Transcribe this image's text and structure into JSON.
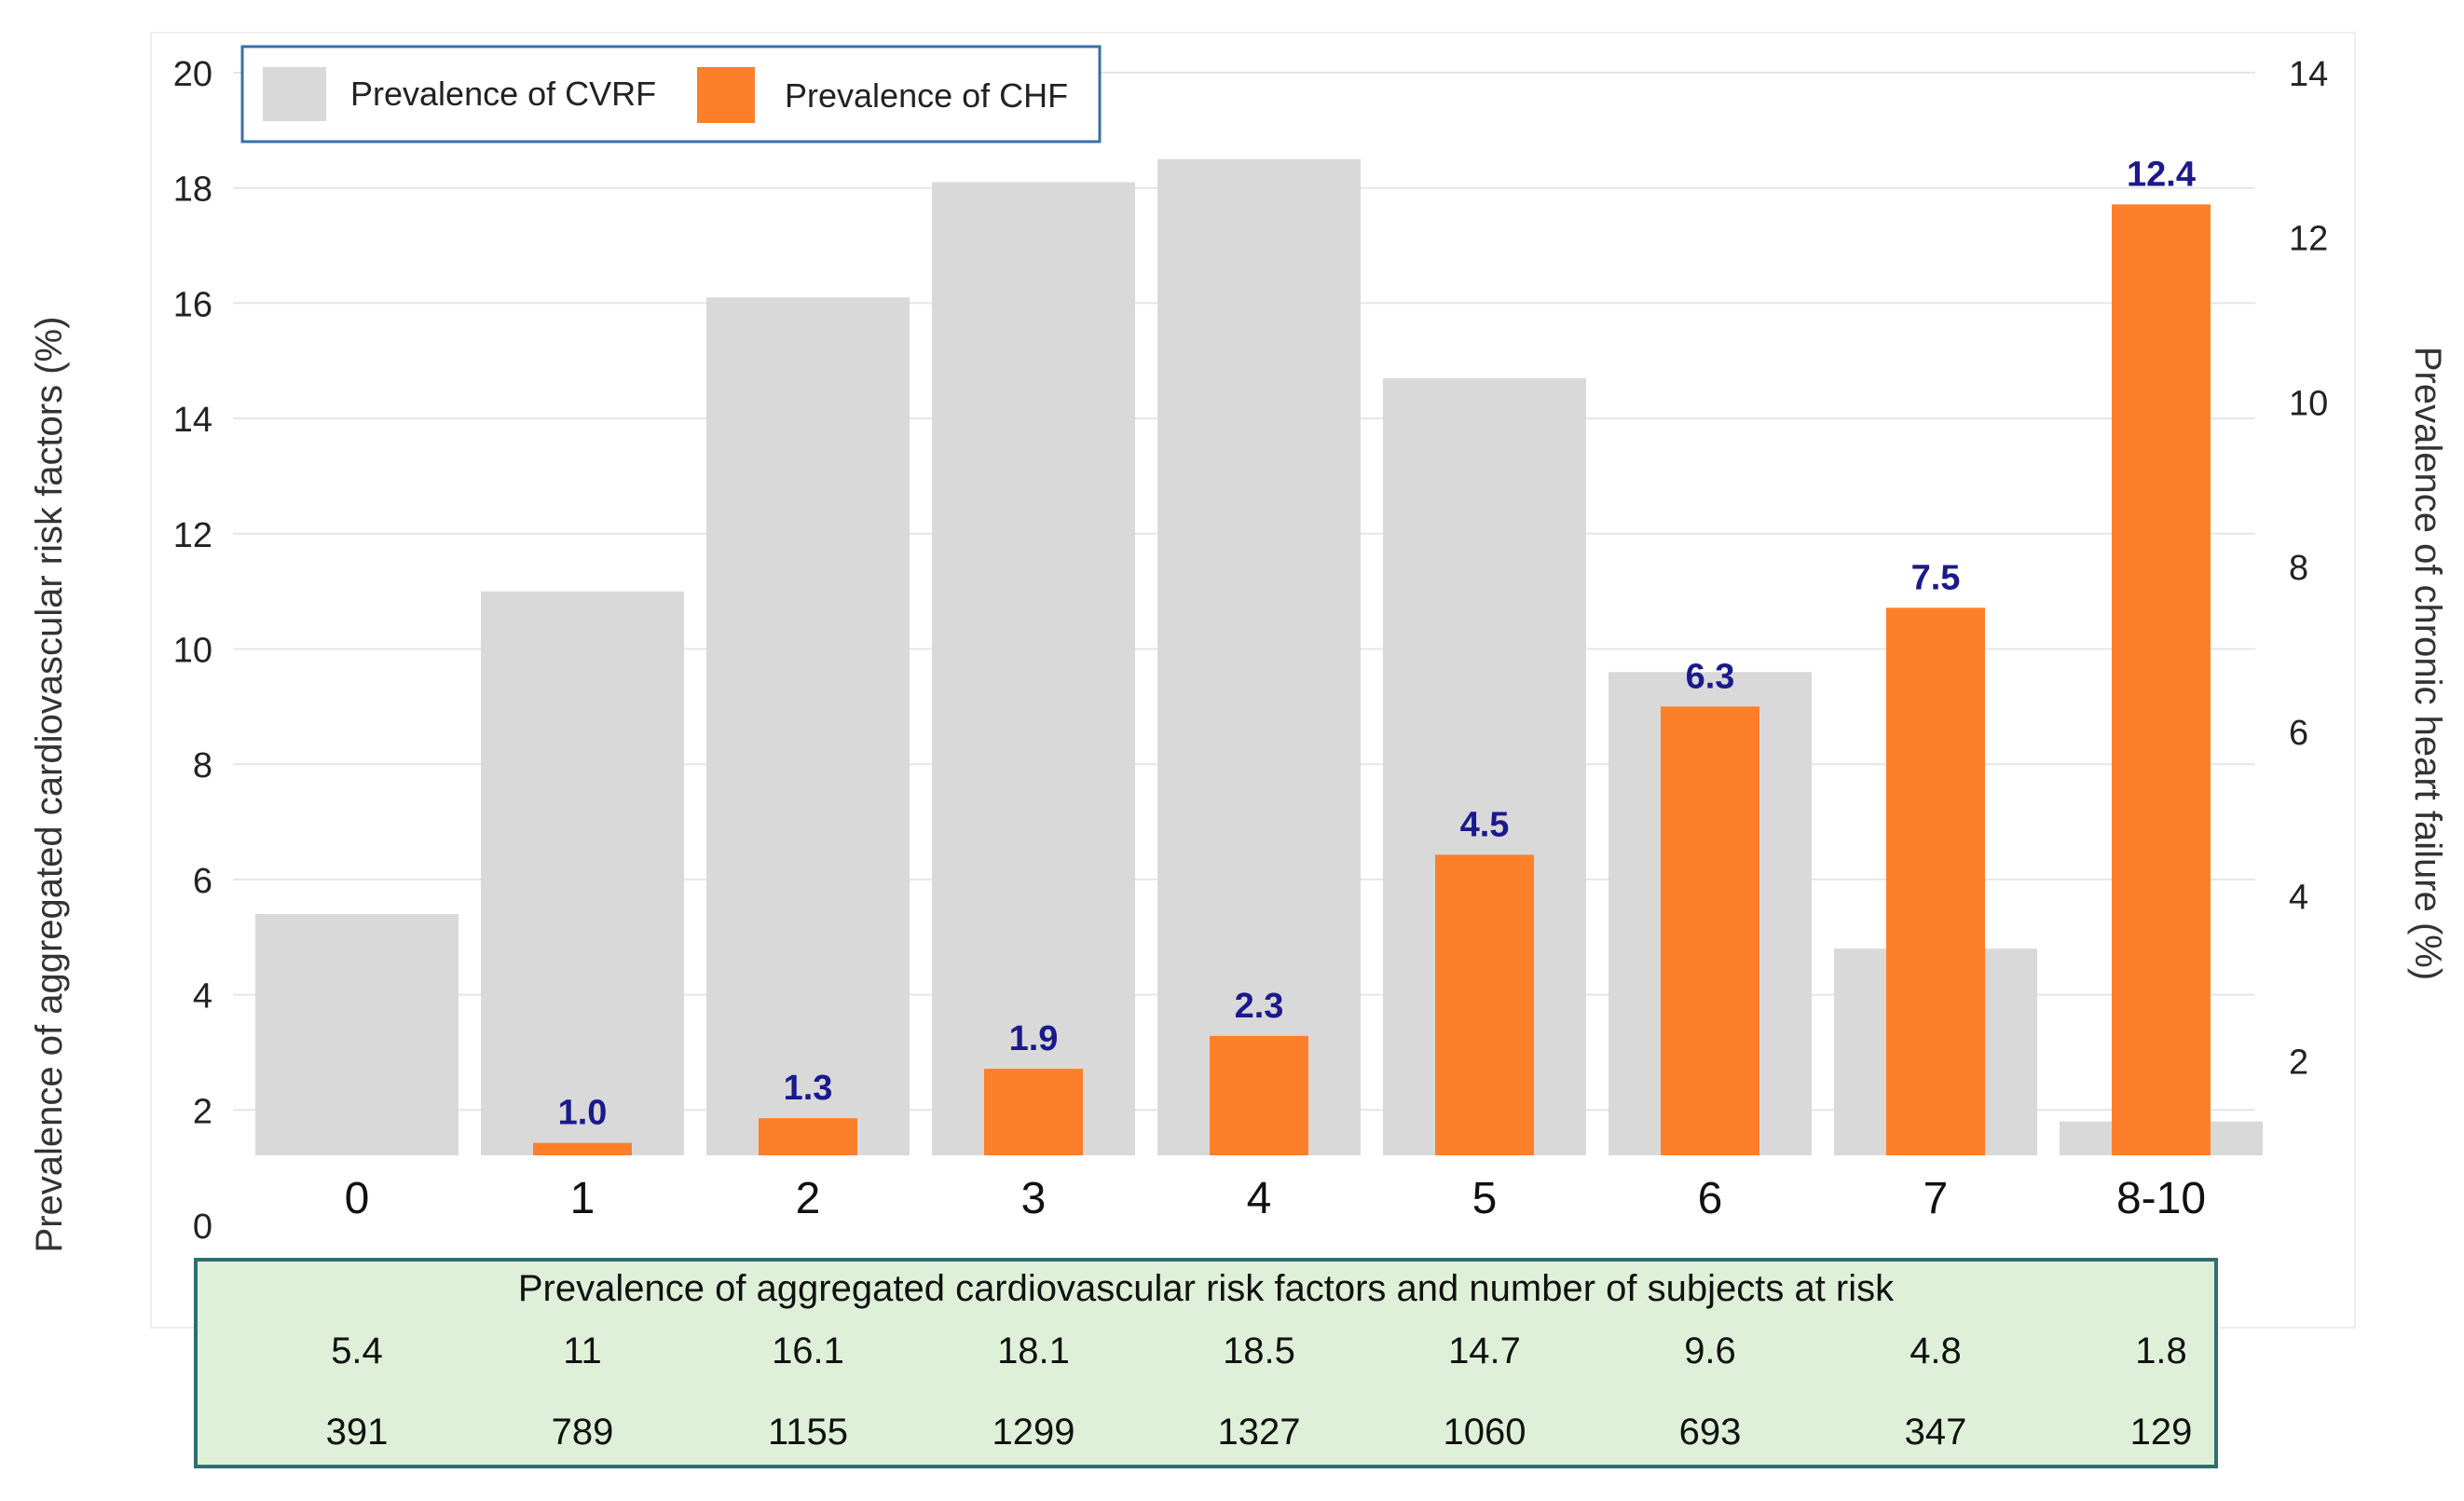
{
  "chart_data": {
    "type": "bar",
    "categories": [
      "0",
      "1",
      "2",
      "3",
      "4",
      "5",
      "6",
      "7",
      "8-10"
    ],
    "series": [
      {
        "name": "Prevalence of CVRF",
        "axis": "left",
        "color": "#d9d9d9",
        "values": [
          5.4,
          11,
          16.1,
          18.1,
          18.5,
          14.7,
          9.6,
          4.8,
          1.8
        ]
      },
      {
        "name": "Prevalence of CHF",
        "axis": "right",
        "color": "#fd7f2a",
        "values": [
          null,
          1.0,
          1.3,
          1.9,
          2.3,
          4.5,
          6.3,
          7.5,
          12.4
        ],
        "data_labels": [
          "",
          "1.0",
          "1.3",
          "1.9",
          "2.3",
          "4.5",
          "6.3",
          "7.5",
          "12.4"
        ]
      }
    ],
    "ylabel_left": "Prevalence of aggregated cardiovascular risk factors (%)",
    "ylabel_right": "Prevalence of chronic heart failure (%)",
    "ylim_left": [
      0,
      20
    ],
    "ylim_right": [
      0,
      14
    ],
    "yticks_left": [
      0,
      2,
      4,
      6,
      8,
      10,
      12,
      14,
      16,
      18,
      20
    ],
    "yticks_right": [
      2,
      4,
      6,
      8,
      10,
      12,
      14
    ],
    "grid": true,
    "legend_position": "top-left",
    "table": {
      "title": "Prevalence of aggregated cardiovascular risk factors and number of subjects at risk",
      "prevalence_row": [
        "5.4",
        "11",
        "16.1",
        "18.1",
        "18.5",
        "14.7",
        "9.6",
        "4.8",
        "1.8"
      ],
      "subjects_row": [
        "391",
        "789",
        "1155",
        "1299",
        "1327",
        "1060",
        "693",
        "347",
        "129"
      ],
      "background_color": "#dff0d8",
      "border_color": "#2e6e6e"
    }
  }
}
